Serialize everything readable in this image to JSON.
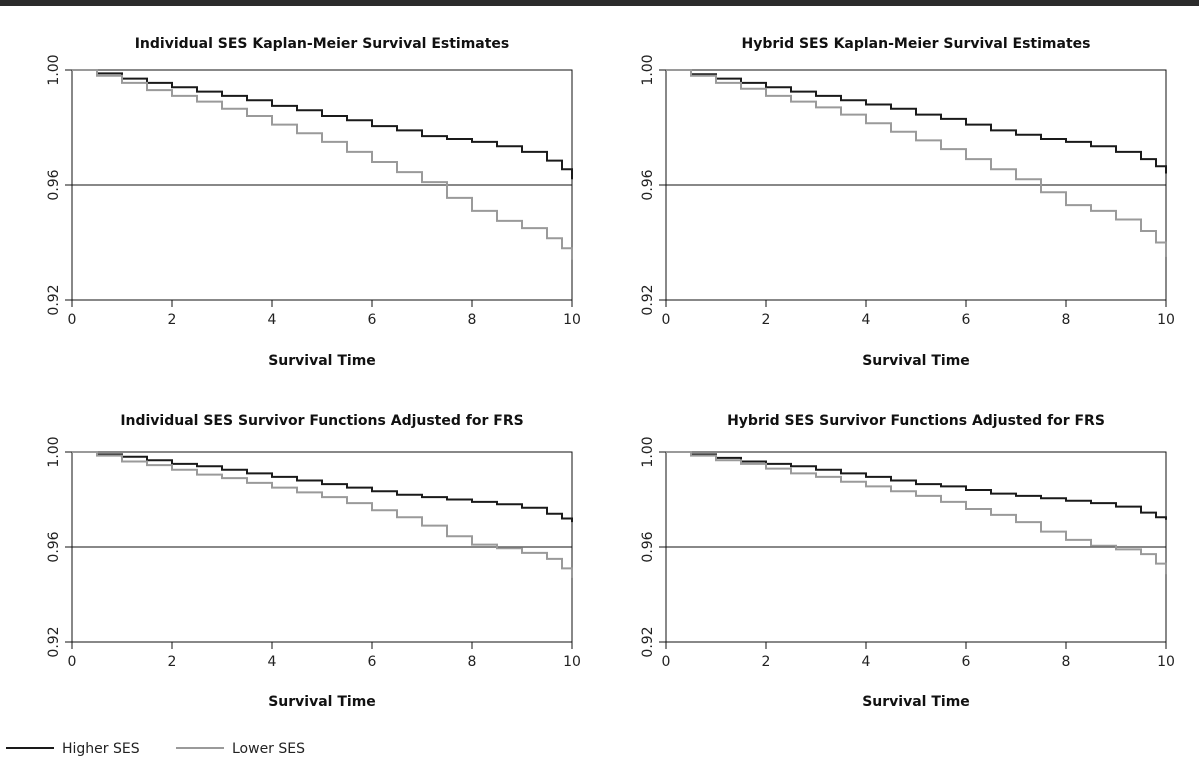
{
  "legend": [
    {
      "label": "Higher SES",
      "color": "#1a1a1a"
    },
    {
      "label": "Lower SES",
      "color": "#9a9a9a"
    }
  ],
  "reference_line": 0.96,
  "chart_data": [
    {
      "type": "line",
      "step": true,
      "title": "Individual SES Kaplan-Meier Survival Estimates",
      "xlabel": "Survival Time",
      "ylabel": "",
      "xlim": [
        0,
        10
      ],
      "ylim": [
        0.92,
        1.0
      ],
      "xticks": [
        0,
        2,
        4,
        6,
        8,
        10
      ],
      "yticks": [
        0.92,
        0.96,
        1.0
      ],
      "ytick_labels": [
        "0.92",
        "0.96",
        "1.00"
      ],
      "grid": false,
      "series": [
        {
          "name": "Higher SES",
          "color": "#1a1a1a",
          "x": [
            0,
            0.5,
            1,
            1.5,
            2,
            2.5,
            3,
            3.5,
            4,
            4.5,
            5,
            5.5,
            6,
            6.5,
            7,
            7.5,
            8,
            8.5,
            9,
            9.5,
            9.8,
            10
          ],
          "y": [
            1.0,
            0.9988,
            0.997,
            0.9955,
            0.994,
            0.9925,
            0.991,
            0.9895,
            0.9875,
            0.986,
            0.984,
            0.9825,
            0.9805,
            0.979,
            0.977,
            0.976,
            0.975,
            0.9735,
            0.9715,
            0.9685,
            0.9655,
            0.962
          ]
        },
        {
          "name": "Lower SES",
          "color": "#9a9a9a",
          "x": [
            0,
            0.5,
            1,
            1.5,
            2,
            2.5,
            3,
            3.5,
            4,
            4.5,
            5,
            5.5,
            6,
            6.5,
            7,
            7.5,
            8,
            8.5,
            9,
            9.5,
            9.8,
            10
          ],
          "y": [
            1.0,
            0.998,
            0.9955,
            0.993,
            0.991,
            0.989,
            0.9865,
            0.984,
            0.981,
            0.978,
            0.975,
            0.9715,
            0.968,
            0.9645,
            0.961,
            0.9555,
            0.951,
            0.9475,
            0.945,
            0.9415,
            0.938,
            0.934
          ]
        }
      ]
    },
    {
      "type": "line",
      "step": true,
      "title": "Hybrid SES Kaplan-Meier Survival Estimates",
      "xlabel": "Survival Time",
      "ylabel": "",
      "xlim": [
        0,
        10
      ],
      "ylim": [
        0.92,
        1.0
      ],
      "xticks": [
        0,
        2,
        4,
        6,
        8,
        10
      ],
      "yticks": [
        0.92,
        0.96,
        1.0
      ],
      "ytick_labels": [
        "0.92",
        "0.96",
        "1.00"
      ],
      "grid": false,
      "series": [
        {
          "name": "Higher SES",
          "color": "#1a1a1a",
          "x": [
            0,
            0.5,
            1,
            1.5,
            2,
            2.5,
            3,
            3.5,
            4,
            4.5,
            5,
            5.5,
            6,
            6.5,
            7,
            7.5,
            8,
            8.5,
            9,
            9.5,
            9.8,
            10
          ],
          "y": [
            1.0,
            0.9985,
            0.997,
            0.9955,
            0.994,
            0.9925,
            0.991,
            0.9895,
            0.988,
            0.9865,
            0.9845,
            0.983,
            0.981,
            0.979,
            0.9775,
            0.976,
            0.975,
            0.9735,
            0.9715,
            0.969,
            0.9665,
            0.964
          ]
        },
        {
          "name": "Lower SES",
          "color": "#9a9a9a",
          "x": [
            0,
            0.5,
            1,
            1.5,
            2,
            2.5,
            3,
            3.5,
            4,
            4.5,
            5,
            5.5,
            6,
            6.5,
            7,
            7.5,
            8,
            8.5,
            9,
            9.5,
            9.8,
            10
          ],
          "y": [
            1.0,
            0.998,
            0.9955,
            0.9935,
            0.991,
            0.989,
            0.987,
            0.9845,
            0.9815,
            0.9785,
            0.9755,
            0.9725,
            0.969,
            0.9655,
            0.962,
            0.9575,
            0.953,
            0.951,
            0.948,
            0.944,
            0.94,
            0.935
          ]
        }
      ]
    },
    {
      "type": "line",
      "step": true,
      "title": "Individual SES Survivor Functions Adjusted for FRS",
      "xlabel": "Survival Time",
      "ylabel": "",
      "xlim": [
        0,
        10
      ],
      "ylim": [
        0.92,
        1.0
      ],
      "xticks": [
        0,
        2,
        4,
        6,
        8,
        10
      ],
      "yticks": [
        0.92,
        0.96,
        1.0
      ],
      "ytick_labels": [
        "0.92",
        "0.96",
        "1.00"
      ],
      "grid": false,
      "series": [
        {
          "name": "Higher SES",
          "color": "#1a1a1a",
          "x": [
            0,
            0.5,
            1,
            1.5,
            2,
            2.5,
            3,
            3.5,
            4,
            4.5,
            5,
            5.5,
            6,
            6.5,
            7,
            7.5,
            8,
            8.5,
            9,
            9.5,
            9.8,
            10
          ],
          "y": [
            1.0,
            0.999,
            0.998,
            0.9965,
            0.995,
            0.994,
            0.9925,
            0.991,
            0.9895,
            0.988,
            0.9865,
            0.985,
            0.9835,
            0.982,
            0.981,
            0.98,
            0.979,
            0.978,
            0.9765,
            0.974,
            0.972,
            0.9705
          ]
        },
        {
          "name": "Lower SES",
          "color": "#9a9a9a",
          "x": [
            0,
            0.5,
            1,
            1.5,
            2,
            2.5,
            3,
            3.5,
            4,
            4.5,
            5,
            5.5,
            6,
            6.5,
            7,
            7.5,
            8,
            8.5,
            9,
            9.5,
            9.8,
            10
          ],
          "y": [
            1.0,
            0.9985,
            0.996,
            0.9945,
            0.9925,
            0.9905,
            0.989,
            0.987,
            0.985,
            0.983,
            0.981,
            0.9785,
            0.9755,
            0.9725,
            0.969,
            0.9645,
            0.961,
            0.9595,
            0.9575,
            0.955,
            0.951,
            0.947
          ]
        }
      ]
    },
    {
      "type": "line",
      "step": true,
      "title": "Hybrid SES Survivor Functions Adjusted for FRS",
      "xlabel": "Survival Time",
      "ylabel": "",
      "xlim": [
        0,
        10
      ],
      "ylim": [
        0.92,
        1.0
      ],
      "xticks": [
        0,
        2,
        4,
        6,
        8,
        10
      ],
      "yticks": [
        0.92,
        0.96,
        1.0
      ],
      "ytick_labels": [
        "0.92",
        "0.96",
        "1.00"
      ],
      "grid": false,
      "series": [
        {
          "name": "Higher SES",
          "color": "#1a1a1a",
          "x": [
            0,
            0.5,
            1,
            1.5,
            2,
            2.5,
            3,
            3.5,
            4,
            4.5,
            5,
            5.5,
            6,
            6.5,
            7,
            7.5,
            8,
            8.5,
            9,
            9.5,
            9.8,
            10
          ],
          "y": [
            1.0,
            0.999,
            0.9975,
            0.996,
            0.995,
            0.994,
            0.9925,
            0.991,
            0.9895,
            0.988,
            0.9865,
            0.9855,
            0.984,
            0.9825,
            0.9815,
            0.9805,
            0.9795,
            0.9785,
            0.977,
            0.9745,
            0.9725,
            0.9715
          ]
        },
        {
          "name": "Lower SES",
          "color": "#9a9a9a",
          "x": [
            0,
            0.5,
            1,
            1.5,
            2,
            2.5,
            3,
            3.5,
            4,
            4.5,
            5,
            5.5,
            6,
            6.5,
            7,
            7.5,
            8,
            8.5,
            9,
            9.5,
            9.8,
            10
          ],
          "y": [
            1.0,
            0.9985,
            0.9965,
            0.995,
            0.993,
            0.991,
            0.9895,
            0.9875,
            0.9855,
            0.9835,
            0.9815,
            0.979,
            0.976,
            0.9735,
            0.9705,
            0.9665,
            0.963,
            0.9605,
            0.959,
            0.957,
            0.953,
            0.9485
          ]
        }
      ]
    }
  ]
}
